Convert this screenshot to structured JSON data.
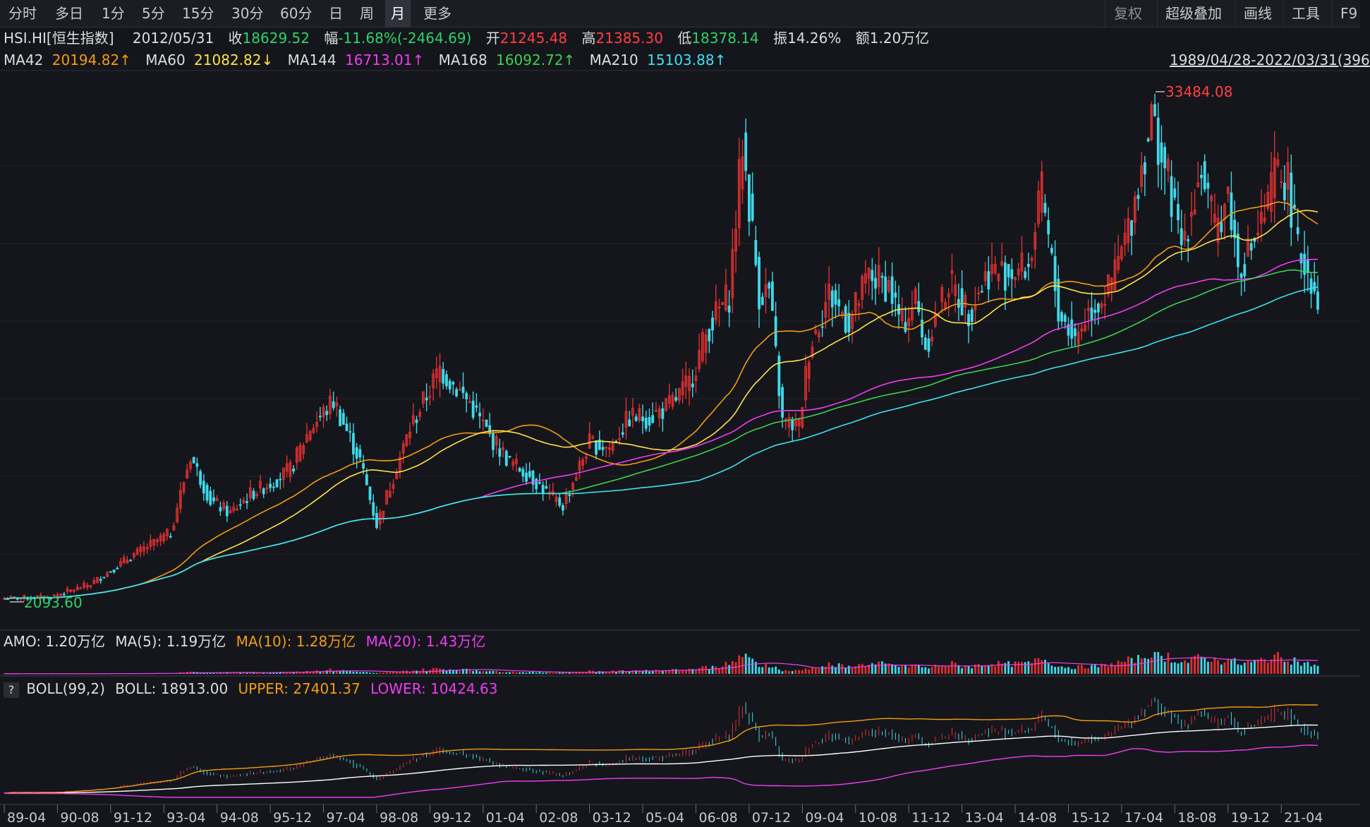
{
  "toolbar": {
    "tabs": [
      "分时",
      "多日",
      "1分",
      "5分",
      "15分",
      "30分",
      "60分",
      "日",
      "周",
      "月",
      "更多"
    ],
    "active_tab": "月",
    "right_items": [
      "复权",
      "超级叠加",
      "画线",
      "工具",
      "F9"
    ]
  },
  "quote": {
    "symbol": "HSI.HI[恒生指数]",
    "date": "2012/05/31",
    "close_label": "收",
    "close": "18629.52",
    "change_label": "幅",
    "change": "-11.68%(-2464.69)",
    "open_label": "开",
    "open": "21245.48",
    "high_label": "高",
    "high": "21385.30",
    "low_label": "低",
    "low": "18378.14",
    "amplitude_label": "振",
    "amplitude": "14.26%",
    "amount_label": "额",
    "amount": "1.20万亿"
  },
  "ma_row": {
    "items": [
      {
        "name": "MA42",
        "value": "20194.82↑",
        "color": "#f39c12"
      },
      {
        "name": "MA60",
        "value": "21082.82↓",
        "color": "#ffe14a"
      },
      {
        "name": "MA144",
        "value": "16713.01↑",
        "color": "#f03cf0"
      },
      {
        "name": "MA168",
        "value": "16092.72↑",
        "color": "#3fcf4f"
      },
      {
        "name": "MA210",
        "value": "15103.88↑",
        "color": "#40e0f0"
      }
    ],
    "range": "1989/04/28-2022/03/31(396"
  },
  "amo_row": {
    "amo": "AMO: 1.20万亿",
    "ma5": "MA(5): 1.19万亿",
    "ma10": "MA(10): 1.28万亿",
    "ma20": "MA(20): 1.43万亿"
  },
  "boll_row": {
    "help": "?",
    "name": "BOLL(99,2)",
    "boll": "BOLL: 18913.00",
    "upper": "UPPER: 27401.37",
    "lower": "LOWER: 10424.63"
  },
  "colors": {
    "up": "#e03030",
    "down": "#40d8e8",
    "ma42": "#f39c12",
    "ma60": "#ffe14a",
    "ma144": "#f03cf0",
    "ma168": "#3fcf4f",
    "ma210": "#40e0f0",
    "boll_mid": "#ffffff",
    "boll_upper": "#f39c12",
    "boll_lower": "#f03cf0"
  },
  "chart_data": {
    "type": "candlestick",
    "title": "HSI.HI 恒生指数 月线",
    "x_tick_labels": [
      "89-04",
      "90-08",
      "91-12",
      "93-04",
      "94-08",
      "95-12",
      "97-04",
      "98-08",
      "99-12",
      "01-04",
      "02-08",
      "03-12",
      "05-04",
      "06-08",
      "07-12",
      "09-04",
      "10-08",
      "11-12",
      "13-04",
      "14-08",
      "15-12",
      "17-04",
      "18-08",
      "19-12",
      "21-04"
    ],
    "annotations": {
      "max_label": "33484.08",
      "min_label": "2093.60"
    },
    "price_ylim": [
      1500,
      35000
    ],
    "close_series": {
      "dates": [
        "1989-04",
        "1990-06",
        "1991-06",
        "1992-06",
        "1993-06",
        "1993-12",
        "1994-06",
        "1994-12",
        "1995-06",
        "1995-12",
        "1996-06",
        "1996-12",
        "1997-07",
        "1998-03",
        "1998-08",
        "1999-06",
        "2000-03",
        "2000-12",
        "2001-06",
        "2001-12",
        "2002-06",
        "2002-12",
        "2003-04",
        "2003-12",
        "2004-06",
        "2004-12",
        "2005-06",
        "2005-12",
        "2006-06",
        "2006-12",
        "2007-06",
        "2007-10",
        "2008-03",
        "2008-06",
        "2008-10",
        "2009-03",
        "2009-06",
        "2009-12",
        "2010-06",
        "2010-12",
        "2011-06",
        "2011-10",
        "2012-02",
        "2012-05",
        "2012-12",
        "2013-06",
        "2013-12",
        "2014-06",
        "2014-12",
        "2015-04",
        "2015-09",
        "2016-02",
        "2016-06",
        "2016-12",
        "2017-06",
        "2018-01",
        "2018-06",
        "2018-10",
        "2019-04",
        "2019-08",
        "2019-12",
        "2020-03",
        "2020-06",
        "2020-12",
        "2021-02",
        "2021-06",
        "2021-09",
        "2021-12",
        "2022-03"
      ],
      "close": [
        2900,
        3000,
        3800,
        5500,
        7000,
        11800,
        9000,
        8200,
        9400,
        10100,
        10900,
        13500,
        15200,
        11500,
        7500,
        13500,
        17200,
        15100,
        13000,
        11400,
        10600,
        9300,
        8700,
        12600,
        12300,
        14200,
        14200,
        14900,
        16300,
        19900,
        21800,
        31300,
        21900,
        22100,
        13900,
        13600,
        18400,
        21900,
        20100,
        23000,
        22400,
        19900,
        21600,
        18630,
        22600,
        20800,
        23300,
        23200,
        23600,
        28100,
        20800,
        19100,
        20800,
        22000,
        25800,
        32900,
        28900,
        24900,
        29700,
        25700,
        28200,
        23600,
        24400,
        27200,
        29500,
        28800,
        24600,
        23400,
        21800
      ]
    },
    "ma_lines": [
      "MA42",
      "MA60",
      "MA144",
      "MA168",
      "MA210"
    ],
    "panels": [
      {
        "name": "AMO",
        "type": "bar",
        "label": "AMO: 1.20万亿"
      },
      {
        "name": "BOLL(99,2)",
        "type": "line",
        "series": [
          "BOLL",
          "UPPER",
          "LOWER"
        ]
      }
    ]
  }
}
